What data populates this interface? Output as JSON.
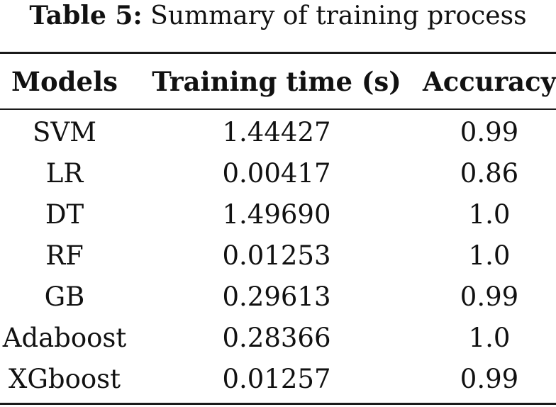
{
  "caption": {
    "label": "Table 5:",
    "title": "Summary of training process"
  },
  "table": {
    "headers": [
      "Models",
      "Training time (s)",
      "Accuracy"
    ],
    "rows": [
      {
        "model": "SVM",
        "time": "1.44427",
        "accuracy": "0.99"
      },
      {
        "model": "LR",
        "time": "0.00417",
        "accuracy": "0.86"
      },
      {
        "model": "DT",
        "time": "1.49690",
        "accuracy": "1.0"
      },
      {
        "model": "RF",
        "time": "0.01253",
        "accuracy": "1.0"
      },
      {
        "model": "GB",
        "time": "0.29613",
        "accuracy": "0.99"
      },
      {
        "model": "Adaboost",
        "time": "0.28366",
        "accuracy": "1.0"
      },
      {
        "model": "XGboost",
        "time": "0.01257",
        "accuracy": "0.99"
      }
    ]
  }
}
